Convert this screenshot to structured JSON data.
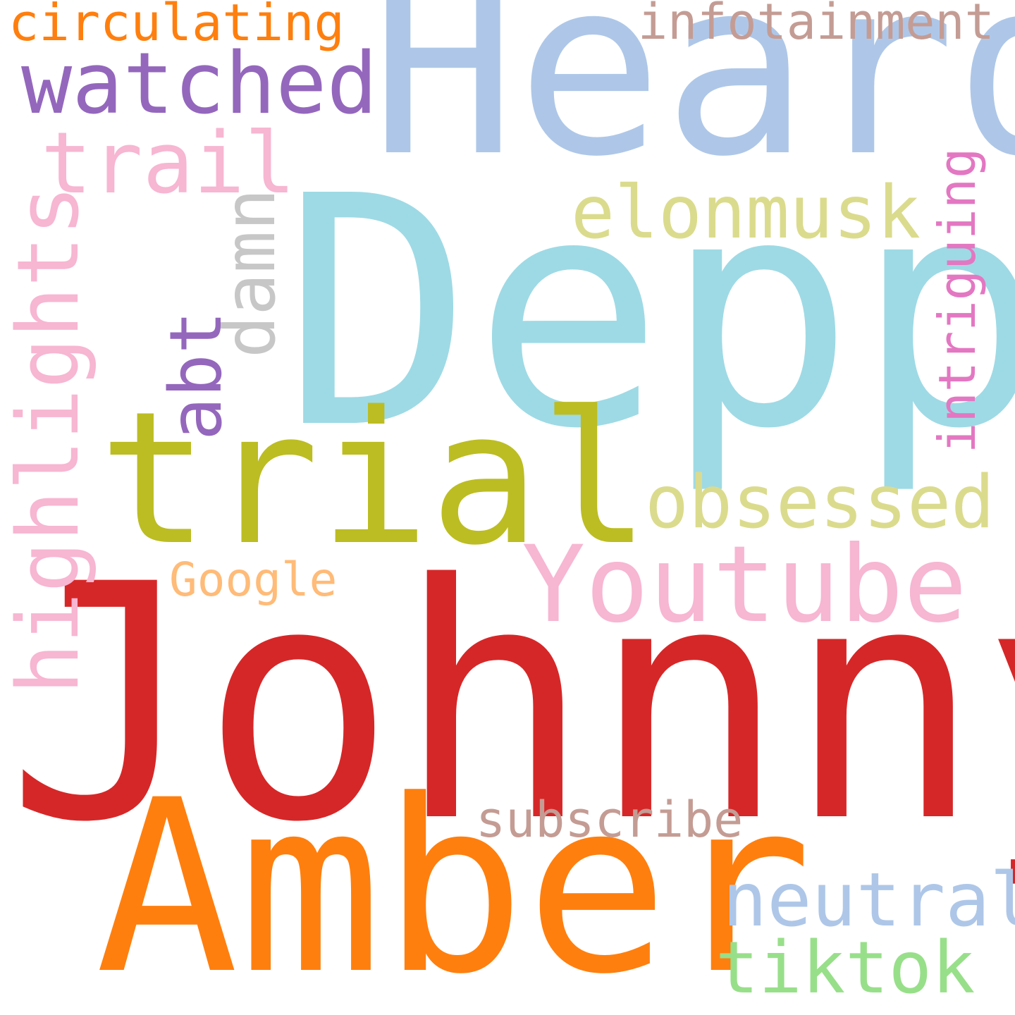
{
  "words": {
    "johnny": {
      "text": "Johnny",
      "color": "#d62728"
    },
    "heard": {
      "text": "Heard",
      "color": "#aec7e8"
    },
    "depp": {
      "text": "Depp",
      "color": "#9edae5"
    },
    "amber": {
      "text": "Amber",
      "color": "#ff7f0e"
    },
    "trial": {
      "text": "trial",
      "color": "#bcbd22"
    },
    "youtube": {
      "text": "Youtube",
      "color": "#f7b6d2"
    },
    "watched": {
      "text": "watched",
      "color": "#9467bd"
    },
    "trail": {
      "text": "trail",
      "color": "#f7b6d2"
    },
    "obsessed": {
      "text": "obsessed",
      "color": "#dbdb8d"
    },
    "elonmusk": {
      "text": "elonmusk",
      "color": "#dbdb8d"
    },
    "neutral": {
      "text": "neutral",
      "color": "#aec7e8"
    },
    "tiktok": {
      "text": "tiktok",
      "color": "#98df8a"
    },
    "circulating": {
      "text": "circulating",
      "color": "#ff7f0e"
    },
    "infotainment": {
      "text": "infotainment",
      "color": "#c49c94"
    },
    "subscribe": {
      "text": "subscribe",
      "color": "#c49c94"
    },
    "google": {
      "text": "Google",
      "color": "#ffbb78"
    },
    "highlights": {
      "text": "highlights",
      "color": "#f7b6d2"
    },
    "abt": {
      "text": "abt",
      "color": "#9467bd"
    },
    "damn": {
      "text": "damn",
      "color": "#c7c7c7"
    },
    "intriguing": {
      "text": "intriguing",
      "color": "#e377c2"
    }
  }
}
